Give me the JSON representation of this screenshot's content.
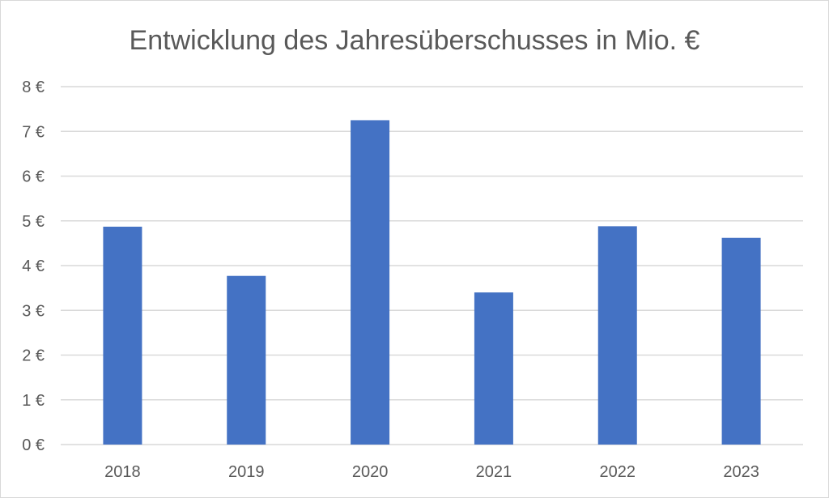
{
  "chart_data": {
    "type": "bar",
    "title": "Entwicklung des Jahresüberschusses in Mio. €",
    "categories": [
      "2018",
      "2019",
      "2020",
      "2021",
      "2022",
      "2023"
    ],
    "values": [
      4.87,
      3.77,
      7.25,
      3.4,
      4.88,
      4.62
    ],
    "ylim": [
      0,
      8
    ],
    "y_ticks": [
      0,
      1,
      2,
      3,
      4,
      5,
      6,
      7,
      8
    ],
    "y_tick_labels": [
      "0 €",
      "1 €",
      "2 €",
      "3 €",
      "4 €",
      "5 €",
      "6 €",
      "7 €",
      "8 €"
    ],
    "xlabel": "",
    "ylabel": "",
    "grid": true,
    "legend": "none",
    "colors": {
      "bar": "#4472c4",
      "grid": "#d9d9d9",
      "text": "#595959"
    }
  }
}
